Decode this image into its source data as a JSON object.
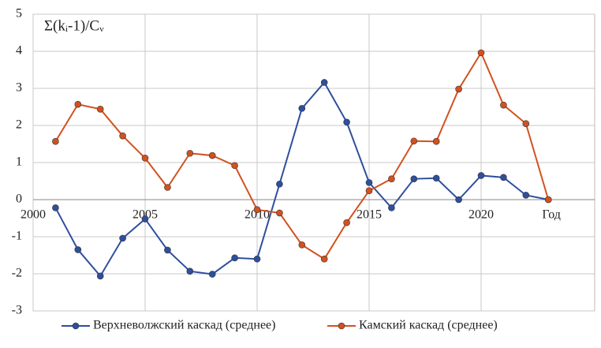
{
  "chart_data": {
    "type": "line",
    "y_label": "Σ(kᵢ-1)/Cᵥ",
    "x_label": "Год",
    "x": [
      2001,
      2002,
      2003,
      2004,
      2005,
      2006,
      2007,
      2008,
      2009,
      2010,
      2011,
      2012,
      2013,
      2014,
      2015,
      2016,
      2017,
      2018,
      2019,
      2020,
      2021,
      2022,
      2023
    ],
    "series": [
      {
        "name": "Верхневолжский каскад (среднее)",
        "color": "#2e4f9e",
        "values": [
          -0.22,
          -1.35,
          -2.06,
          -1.04,
          -0.52,
          -1.36,
          -1.93,
          -2.01,
          -1.57,
          -1.6,
          0.42,
          2.46,
          3.16,
          2.09,
          0.46,
          -0.22,
          0.56,
          0.58,
          0.0,
          0.65,
          0.6,
          0.12,
          0.0
        ]
      },
      {
        "name": "Камский каскад (среднее)",
        "color": "#d2511f",
        "values": [
          1.57,
          2.57,
          2.44,
          1.72,
          1.12,
          0.33,
          1.25,
          1.19,
          0.92,
          -0.27,
          -0.36,
          -1.22,
          -1.6,
          -0.62,
          0.24,
          0.56,
          1.58,
          1.57,
          2.98,
          3.96,
          2.55,
          2.05,
          0.0
        ]
      }
    ],
    "xlim": [
      2000,
      2025
    ],
    "xticks": [
      2000,
      2005,
      2010,
      2015,
      2020
    ],
    "ylim": [
      -3,
      5
    ],
    "yticks": [
      -3,
      -2,
      -1,
      0,
      1,
      2,
      3,
      4,
      5
    ],
    "grid": true,
    "legend": "bottom"
  }
}
